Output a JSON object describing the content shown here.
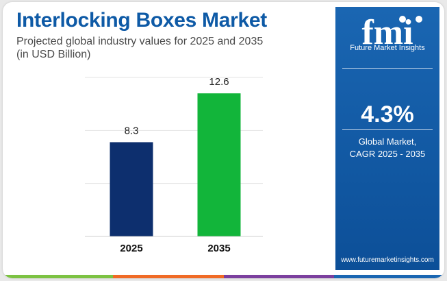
{
  "header": {
    "title": "Interlocking Boxes Market",
    "subtitle_line1": "Projected global industry values for 2025 and 2035",
    "subtitle_line2": "(in USD Billion)"
  },
  "chart_data": {
    "type": "bar",
    "categories": [
      "2025",
      "2035"
    ],
    "values": [
      8.3,
      12.6
    ],
    "value_labels": [
      "8.3",
      "12.6"
    ],
    "bar_colors": [
      "#0d2f6e",
      "#12b53a"
    ],
    "ylim": [
      0,
      14
    ],
    "grid": true,
    "title": "",
    "xlabel": "",
    "ylabel": ""
  },
  "sidebar": {
    "logo_text": "fmi",
    "brand_name": "Future Market Insights",
    "cagr_value": "4.3%",
    "cagr_label_line1": "Global Market,",
    "cagr_label_line2": "CAGR 2025 - 2035",
    "website": "www.futuremarketinsights.com"
  },
  "colors": {
    "title": "#0e5aa6",
    "panel": "#1a66b2",
    "stripe": [
      "#7cc242",
      "#f06a25",
      "#7b3f9e",
      "#1a66b2"
    ]
  }
}
